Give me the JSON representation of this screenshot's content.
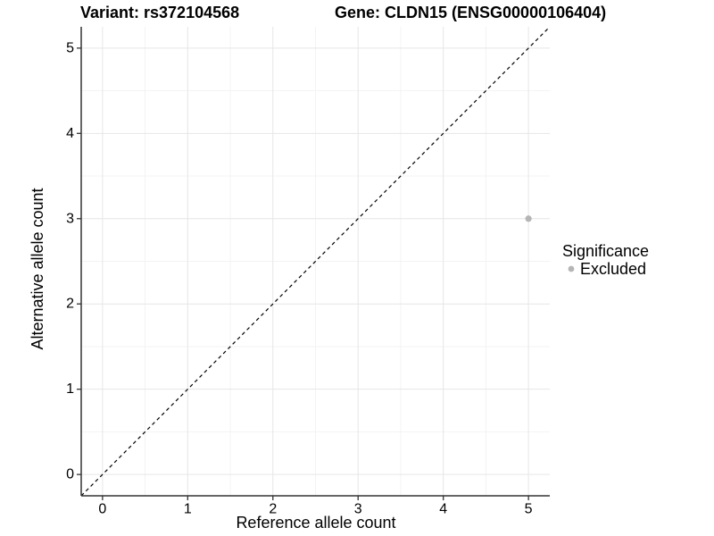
{
  "chart_data": {
    "type": "scatter",
    "title_left": "Variant: rs372104568",
    "title_right": "Gene: CLDN15 (ENSG00000106404)",
    "xlabel": "Reference allele count",
    "ylabel": "Alternative allele count",
    "xlim": [
      -0.25,
      5.25
    ],
    "ylim": [
      -0.25,
      5.25
    ],
    "x_ticks": [
      0,
      1,
      2,
      3,
      4,
      5
    ],
    "y_ticks": [
      0,
      1,
      2,
      3,
      4,
      5
    ],
    "minor_ticks": [
      0.5,
      1.5,
      2.5,
      3.5,
      4.5
    ],
    "grid": "major+minor",
    "points": [
      {
        "x": 5,
        "y": 3,
        "significance": "Excluded"
      }
    ],
    "identity_line": {
      "slope": 1,
      "intercept": 0,
      "style": "dashed"
    },
    "legend": {
      "title": "Significance",
      "position": "right",
      "items": [
        {
          "label": "Excluded",
          "color": "#b5b5b5"
        }
      ]
    },
    "colors": {
      "point": "#b5b5b5",
      "identity_line": "#000000",
      "grid_major": "#e6e6e6",
      "grid_minor": "#f3f3f3",
      "axis_line": "#333333",
      "tick_mark": "#333333",
      "tick_text": "#1a1a1a",
      "title_text": "#000000",
      "background": "#ffffff"
    }
  }
}
